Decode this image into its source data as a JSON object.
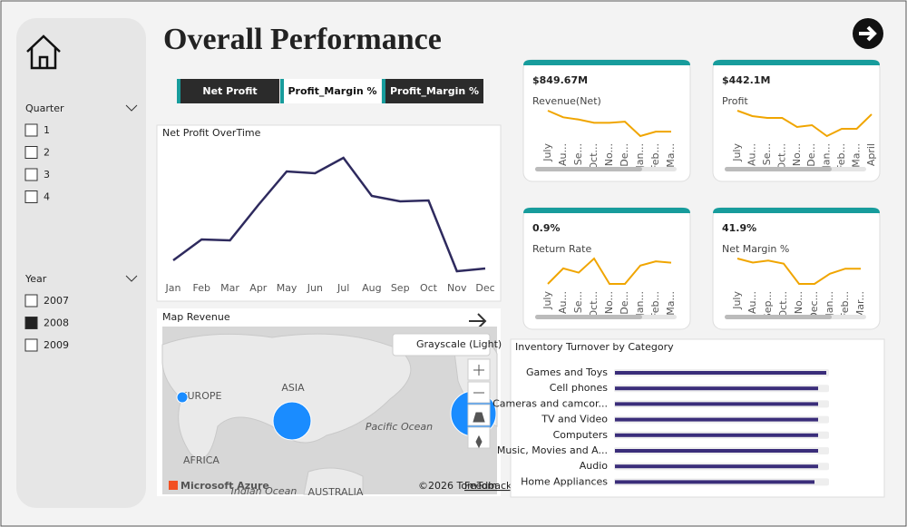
{
  "header": {
    "title": "Overall Performance"
  },
  "tabs": [
    "Net Profit",
    "Profit_Margin %",
    "Profit_Margin %"
  ],
  "slicers": [
    {
      "title": "Quarter",
      "options": [
        "1",
        "2",
        "3",
        "4"
      ],
      "selected": []
    },
    {
      "title": "Year",
      "options": [
        "2007",
        "2008",
        "2009"
      ],
      "selected": [
        "2008"
      ]
    }
  ],
  "line_chart": {
    "type": "line",
    "title": "Net Profit OverTime",
    "color": "#2e2a5e",
    "categories": [
      "Jan",
      "Feb",
      "Mar",
      "Apr",
      "May",
      "Jun",
      "Jul",
      "Aug",
      "Sep",
      "Oct",
      "Nov",
      "Dec"
    ],
    "values": [
      13,
      36,
      35,
      74,
      111,
      109,
      126,
      84,
      78,
      79,
      1,
      4
    ]
  },
  "cards": [
    {
      "value": "$849.67M",
      "label": "Revenue(Net)",
      "color": "#f0a500",
      "categories": [
        "July",
        "Au...",
        "Se...",
        "Oct...",
        "No...",
        "De...",
        "Jan...",
        "Feb...",
        "Ma..."
      ],
      "values": [
        33,
        27,
        25,
        22,
        22,
        23,
        10,
        14,
        14
      ]
    },
    {
      "value": "$442.1M",
      "label": "Profit",
      "color": "#f0a500",
      "categories": [
        "July",
        "Au...",
        "Se...",
        "Oct...",
        "No...",
        "De...",
        "Jan...",
        "Feb...",
        "Ma...",
        "April"
      ],
      "values": [
        31,
        28,
        27,
        27,
        22,
        23,
        17,
        21,
        21,
        29
      ]
    },
    {
      "value": "0.9%",
      "label": "Return Rate",
      "color": "#f0a500",
      "categories": [
        "July",
        "Au...",
        "Se...",
        "Oct...",
        "No...",
        "De...",
        "Jan...",
        "Feb...",
        "Ma..."
      ],
      "values": [
        17,
        28,
        25,
        35,
        17,
        17,
        30,
        33,
        32
      ]
    },
    {
      "value": "41.9%",
      "label": "Net Margin %",
      "color": "#f0a500",
      "categories": [
        "July",
        "Au...",
        "Sep...",
        "Oct...",
        "No...",
        "Dec...",
        "Jan...",
        "Feb...",
        "Mar..."
      ],
      "values": [
        42,
        38,
        40,
        37,
        17,
        17,
        27,
        32,
        32
      ]
    }
  ],
  "map": {
    "title": "Map Revenue",
    "style_button": "Grayscale (Light)",
    "labels": [
      "EUROPE",
      "ASIA",
      "AFRICA",
      "Pacific Ocean",
      "Indian Ocean",
      "AUSTRALIA"
    ],
    "brand": "Microsoft Azure",
    "copyright": "©2026 TomTom",
    "feedback": "Feedback",
    "bubble_color": "#1a8cff",
    "bubbles": [
      6,
      21,
      25
    ]
  },
  "bar_chart": {
    "type": "bar",
    "title": "Inventory Turnover by Category",
    "color": "#3a2d7a",
    "categories": [
      "Games and Toys",
      "Cell phones",
      "Cameras and camcor...",
      "TV and Video",
      "Computers",
      "Music, Movies and A...",
      "Audio",
      "Home Appliances"
    ],
    "values": [
      233,
      224,
      224,
      224,
      224,
      224,
      224,
      220
    ]
  }
}
